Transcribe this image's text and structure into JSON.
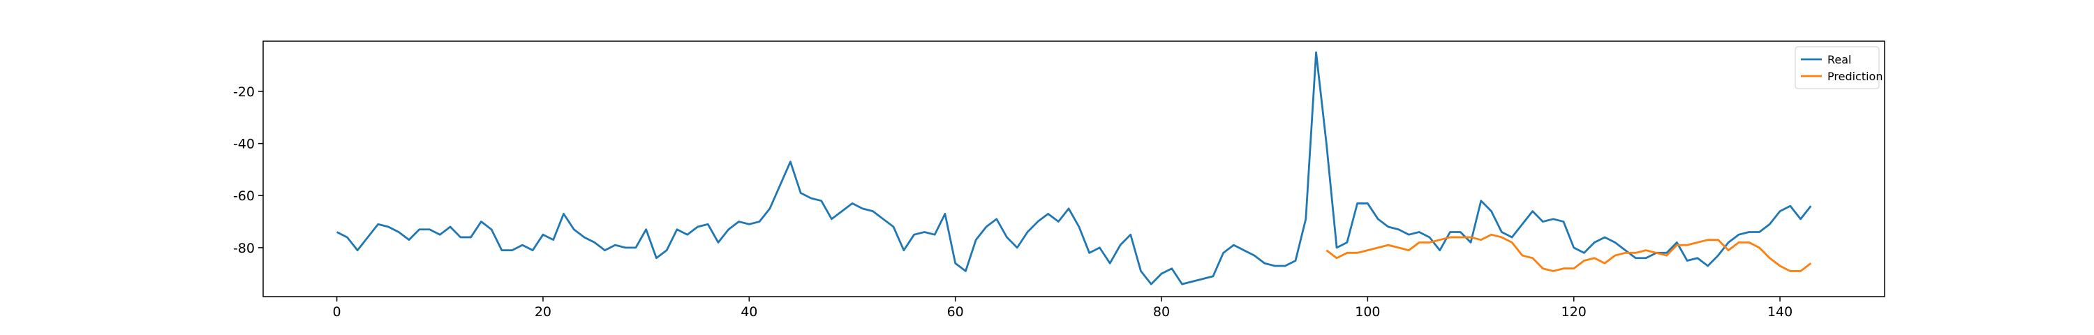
{
  "chart_data": {
    "type": "line",
    "x": [
      0,
      1,
      2,
      3,
      4,
      5,
      6,
      7,
      8,
      9,
      10,
      11,
      12,
      13,
      14,
      15,
      16,
      17,
      18,
      19,
      20,
      21,
      22,
      23,
      24,
      25,
      26,
      27,
      28,
      29,
      30,
      31,
      32,
      33,
      34,
      35,
      36,
      37,
      38,
      39,
      40,
      41,
      42,
      43,
      44,
      45,
      46,
      47,
      48,
      49,
      50,
      51,
      52,
      53,
      54,
      55,
      56,
      57,
      58,
      59,
      60,
      61,
      62,
      63,
      64,
      65,
      66,
      67,
      68,
      69,
      70,
      71,
      72,
      73,
      74,
      75,
      76,
      77,
      78,
      79,
      80,
      81,
      82,
      83,
      84,
      85,
      86,
      87,
      88,
      89,
      90,
      91,
      92,
      93,
      94,
      95,
      96,
      97,
      98,
      99,
      100,
      101,
      102,
      103,
      104,
      105,
      106,
      107,
      108,
      109,
      110,
      111,
      112,
      113,
      114,
      115,
      116,
      117,
      118,
      119,
      120,
      121,
      122,
      123,
      124,
      125,
      126,
      127,
      128,
      129,
      130,
      131,
      132,
      133,
      134,
      135,
      136,
      137,
      138,
      139,
      140,
      141,
      142,
      143
    ],
    "series": [
      {
        "name": "Real",
        "color": "#1f77b4",
        "values": [
          -74,
          -76,
          -81,
          -76,
          -71,
          -72,
          -74,
          -77,
          -73,
          -73,
          -75,
          -72,
          -76,
          -76,
          -70,
          -73,
          -81,
          -81,
          -79,
          -81,
          -75,
          -77,
          -67,
          -73,
          -76,
          -78,
          -81,
          -79,
          -80,
          -80,
          -73,
          -84,
          -81,
          -73,
          -75,
          -72,
          -71,
          -78,
          -73,
          -70,
          -71,
          -70,
          -65,
          -56,
          -47,
          -59,
          -61,
          -62,
          -69,
          -66,
          -63,
          -65,
          -66,
          -69,
          -72,
          -81,
          -75,
          -74,
          -75,
          -67,
          -86,
          -89,
          -77,
          -72,
          -69,
          -76,
          -80,
          -74,
          -70,
          -67,
          -70,
          -65,
          -72,
          -82,
          -80,
          -86,
          -79,
          -75,
          -89,
          -94,
          -90,
          -88,
          -94,
          -93,
          -92,
          -91,
          -82,
          -79,
          -81,
          -83,
          -86,
          -87,
          -87,
          -85,
          -69,
          -5,
          -40,
          -80,
          -78,
          -63,
          -63,
          -69,
          -72,
          -73,
          -75,
          -74,
          -76,
          -81,
          -74,
          -74,
          -78,
          -62,
          -66,
          -74,
          -76,
          -71,
          -66,
          -70,
          -69,
          -70,
          -80,
          -82,
          -78,
          -76,
          -78,
          -81,
          -84,
          -84,
          -82,
          -82,
          -78,
          -85,
          -84,
          -87,
          -83,
          -78,
          -75,
          -74,
          -74,
          -71,
          -66,
          -64,
          -69,
          -64
        ]
      },
      {
        "name": "Prediction",
        "color": "#ff7f0e",
        "values": [
          null,
          null,
          null,
          null,
          null,
          null,
          null,
          null,
          null,
          null,
          null,
          null,
          null,
          null,
          null,
          null,
          null,
          null,
          null,
          null,
          null,
          null,
          null,
          null,
          null,
          null,
          null,
          null,
          null,
          null,
          null,
          null,
          null,
          null,
          null,
          null,
          null,
          null,
          null,
          null,
          null,
          null,
          null,
          null,
          null,
          null,
          null,
          null,
          null,
          null,
          null,
          null,
          null,
          null,
          null,
          null,
          null,
          null,
          null,
          null,
          null,
          null,
          null,
          null,
          null,
          null,
          null,
          null,
          null,
          null,
          null,
          null,
          null,
          null,
          null,
          null,
          null,
          null,
          null,
          null,
          null,
          null,
          null,
          null,
          null,
          null,
          null,
          null,
          null,
          null,
          null,
          null,
          null,
          null,
          null,
          null,
          -81,
          -84,
          -82,
          -82,
          -81,
          -80,
          -79,
          -80,
          -81,
          -78,
          -78,
          -77,
          -76,
          -76,
          -76,
          -77,
          -75,
          -76,
          -78,
          -83,
          -84,
          -88,
          -89,
          -88,
          -88,
          -85,
          -84,
          -86,
          -83,
          -82,
          -82,
          -81,
          -82,
          -83,
          -79,
          -79,
          -78,
          -77,
          -77,
          -81,
          -78,
          -78,
          -80,
          -84,
          -87,
          -89,
          -89,
          -86
        ]
      }
    ],
    "xlim": [
      -7.15,
      150.15
    ],
    "xticks": [
      0,
      20,
      40,
      60,
      80,
      100,
      120,
      140
    ],
    "ylim": [
      -98.8,
      -0.7
    ],
    "yticks": [
      -20,
      -40,
      -60,
      -80
    ],
    "grid": false,
    "legend": "upper right"
  }
}
